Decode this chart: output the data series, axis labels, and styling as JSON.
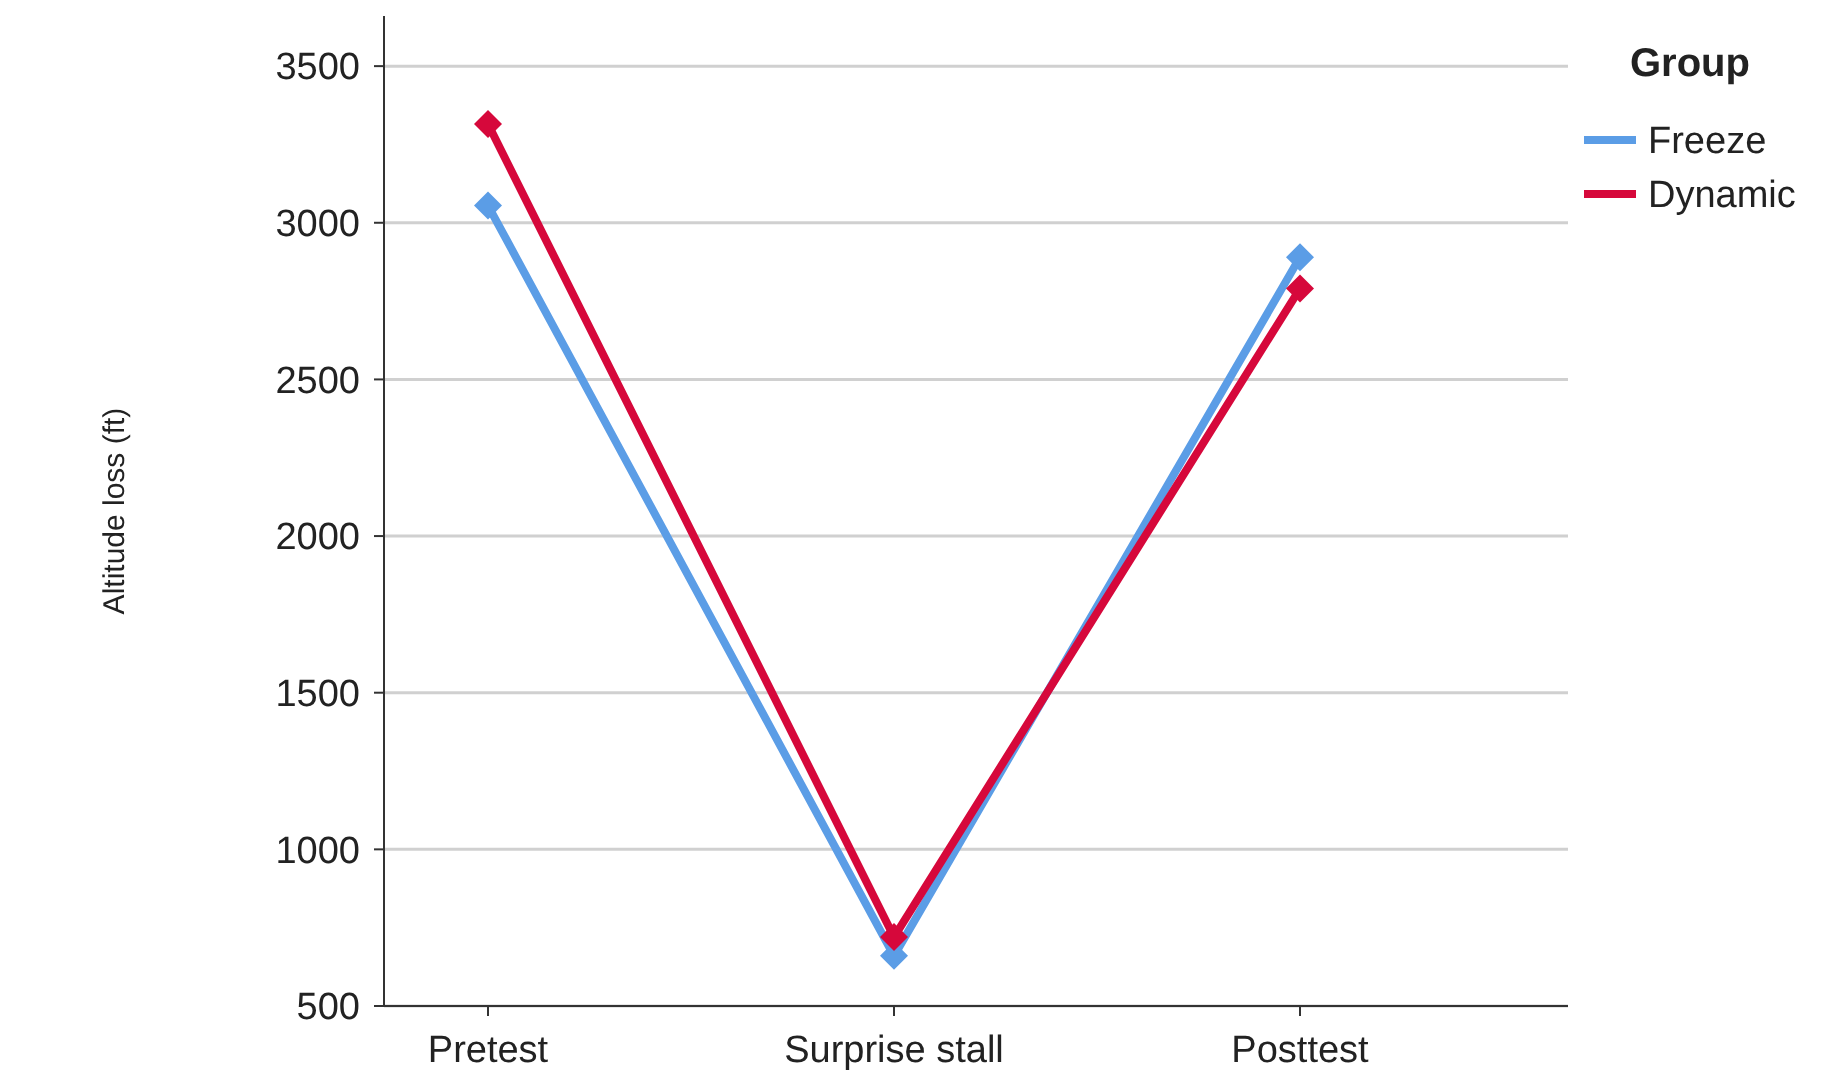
{
  "chart_data": {
    "type": "line",
    "ylabel": "Altitude loss (ft)",
    "legend_title": "Group",
    "categories": [
      "Pretest",
      "Surprise stall",
      "Posttest"
    ],
    "series": [
      {
        "name": "Freeze",
        "color": "#5b9de6",
        "values": [
          3055,
          660,
          2890
        ]
      },
      {
        "name": "Dynamic",
        "color": "#d6083b",
        "values": [
          3315,
          720,
          2790
        ]
      }
    ],
    "ylim": [
      500,
      3660
    ],
    "yticks": [
      500,
      1000,
      1500,
      2000,
      2500,
      3000,
      3500
    ],
    "grid": "y",
    "legend": "top right",
    "marker": "diamond",
    "line_style": "solid"
  }
}
